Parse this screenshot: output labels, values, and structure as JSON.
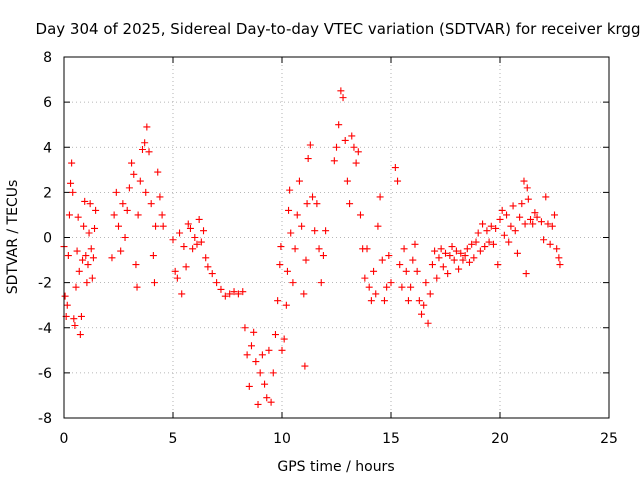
{
  "chart_data": {
    "type": "scatter",
    "title": "Day 304 of 2025, Sidereal Day-to-day VTEC variation (SDTVAR) for receiver krgg",
    "xlabel": "GPS time / hours",
    "ylabel": "SDTVAR / TECUs",
    "xlim": [
      0,
      25
    ],
    "ylim": [
      -8,
      8
    ],
    "xticks": [
      0,
      5,
      10,
      15,
      20,
      25
    ],
    "yticks": [
      -8,
      -6,
      -4,
      -2,
      0,
      2,
      4,
      6,
      8
    ],
    "xtick_labels": [
      "0",
      "5",
      "10",
      "15",
      "20",
      "25"
    ],
    "ytick_labels": [
      "-8",
      "-6",
      "-4",
      "-2",
      "0",
      "2",
      "4",
      "6",
      "8"
    ],
    "grid": true,
    "marker": "+",
    "series": [
      {
        "name": "SDTVAR",
        "color": "#ff0000",
        "points": [
          [
            0.0,
            -0.4
          ],
          [
            0.05,
            -2.6
          ],
          [
            0.1,
            -3.5
          ],
          [
            0.15,
            -3.0
          ],
          [
            0.2,
            -0.8
          ],
          [
            0.25,
            1.0
          ],
          [
            0.3,
            2.4
          ],
          [
            0.35,
            3.3
          ],
          [
            0.4,
            2.0
          ],
          [
            0.45,
            -3.6
          ],
          [
            0.5,
            -3.9
          ],
          [
            0.55,
            -2.2
          ],
          [
            0.6,
            -0.6
          ],
          [
            0.65,
            0.9
          ],
          [
            0.7,
            -1.5
          ],
          [
            0.75,
            -4.3
          ],
          [
            0.8,
            -3.5
          ],
          [
            0.85,
            -1.0
          ],
          [
            0.9,
            0.5
          ],
          [
            0.95,
            1.6
          ],
          [
            1.0,
            -0.8
          ],
          [
            1.05,
            -2.0
          ],
          [
            1.1,
            -1.2
          ],
          [
            1.15,
            0.2
          ],
          [
            1.2,
            1.5
          ],
          [
            1.25,
            -0.5
          ],
          [
            1.3,
            -1.8
          ],
          [
            1.35,
            -0.9
          ],
          [
            1.4,
            0.4
          ],
          [
            1.45,
            1.2
          ],
          [
            2.2,
            -0.9
          ],
          [
            2.3,
            1.0
          ],
          [
            2.4,
            2.0
          ],
          [
            2.5,
            0.5
          ],
          [
            2.6,
            -0.6
          ],
          [
            2.7,
            1.5
          ],
          [
            2.8,
            0.0
          ],
          [
            2.9,
            1.2
          ],
          [
            3.0,
            2.2
          ],
          [
            3.1,
            3.3
          ],
          [
            3.2,
            2.8
          ],
          [
            3.3,
            -1.2
          ],
          [
            3.35,
            -2.2
          ],
          [
            3.4,
            1.0
          ],
          [
            3.5,
            2.5
          ],
          [
            3.6,
            3.9
          ],
          [
            3.7,
            4.2
          ],
          [
            3.75,
            2.0
          ],
          [
            3.8,
            4.9
          ],
          [
            3.9,
            3.8
          ],
          [
            4.0,
            1.5
          ],
          [
            4.1,
            -0.8
          ],
          [
            4.15,
            -2.0
          ],
          [
            4.2,
            0.5
          ],
          [
            4.3,
            2.9
          ],
          [
            4.4,
            1.8
          ],
          [
            4.5,
            1.0
          ],
          [
            4.55,
            0.5
          ],
          [
            5.0,
            -0.1
          ],
          [
            5.1,
            -1.5
          ],
          [
            5.2,
            -1.8
          ],
          [
            5.3,
            0.2
          ],
          [
            5.4,
            -2.5
          ],
          [
            5.5,
            -0.4
          ],
          [
            5.6,
            -1.3
          ],
          [
            5.7,
            0.6
          ],
          [
            5.8,
            0.4
          ],
          [
            5.9,
            -0.5
          ],
          [
            6.0,
            0.0
          ],
          [
            6.1,
            -0.3
          ],
          [
            6.2,
            0.8
          ],
          [
            6.3,
            -0.2
          ],
          [
            6.4,
            0.3
          ],
          [
            6.5,
            -0.9
          ],
          [
            6.6,
            -1.3
          ],
          [
            6.8,
            -1.6
          ],
          [
            7.0,
            -2.0
          ],
          [
            7.2,
            -2.3
          ],
          [
            7.4,
            -2.6
          ],
          [
            7.6,
            -2.5
          ],
          [
            7.8,
            -2.4
          ],
          [
            8.0,
            -2.5
          ],
          [
            8.2,
            -2.4
          ],
          [
            8.3,
            -4.0
          ],
          [
            8.4,
            -5.2
          ],
          [
            8.5,
            -6.6
          ],
          [
            8.6,
            -4.8
          ],
          [
            8.7,
            -4.2
          ],
          [
            8.8,
            -5.5
          ],
          [
            8.9,
            -7.4
          ],
          [
            9.0,
            -6.0
          ],
          [
            9.1,
            -5.2
          ],
          [
            9.2,
            -6.5
          ],
          [
            9.3,
            -7.1
          ],
          [
            9.4,
            -5.0
          ],
          [
            9.5,
            -7.3
          ],
          [
            9.6,
            -6.0
          ],
          [
            9.7,
            -4.3
          ],
          [
            9.8,
            -2.8
          ],
          [
            9.9,
            -1.2
          ],
          [
            9.95,
            -0.4
          ],
          [
            10.0,
            -5.0
          ],
          [
            10.1,
            -4.5
          ],
          [
            10.2,
            -3.0
          ],
          [
            10.25,
            -1.5
          ],
          [
            10.3,
            1.2
          ],
          [
            10.35,
            2.1
          ],
          [
            10.4,
            0.2
          ],
          [
            10.5,
            -2.0
          ],
          [
            10.6,
            -0.5
          ],
          [
            10.7,
            1.0
          ],
          [
            10.8,
            2.5
          ],
          [
            10.9,
            0.5
          ],
          [
            11.0,
            -2.5
          ],
          [
            11.05,
            -5.7
          ],
          [
            11.1,
            -1.0
          ],
          [
            11.15,
            1.5
          ],
          [
            11.2,
            3.5
          ],
          [
            11.3,
            4.1
          ],
          [
            11.4,
            1.8
          ],
          [
            11.5,
            0.3
          ],
          [
            11.6,
            1.5
          ],
          [
            11.7,
            -0.5
          ],
          [
            11.8,
            -2.0
          ],
          [
            11.9,
            -0.8
          ],
          [
            12.0,
            0.3
          ],
          [
            12.4,
            3.4
          ],
          [
            12.5,
            4.0
          ],
          [
            12.6,
            5.0
          ],
          [
            12.7,
            6.5
          ],
          [
            12.8,
            6.2
          ],
          [
            12.9,
            4.3
          ],
          [
            13.0,
            2.5
          ],
          [
            13.1,
            1.5
          ],
          [
            13.2,
            4.5
          ],
          [
            13.3,
            4.0
          ],
          [
            13.4,
            3.3
          ],
          [
            13.5,
            3.8
          ],
          [
            13.6,
            1.0
          ],
          [
            13.7,
            -0.5
          ],
          [
            13.8,
            -1.8
          ],
          [
            13.9,
            -0.5
          ],
          [
            14.0,
            -2.2
          ],
          [
            14.1,
            -2.8
          ],
          [
            14.2,
            -1.5
          ],
          [
            14.3,
            -2.5
          ],
          [
            14.4,
            0.5
          ],
          [
            14.5,
            1.8
          ],
          [
            14.6,
            -1.0
          ],
          [
            14.7,
            -2.8
          ],
          [
            14.8,
            -2.2
          ],
          [
            14.9,
            -0.8
          ],
          [
            15.0,
            -2.0
          ],
          [
            15.2,
            3.1
          ],
          [
            15.3,
            2.5
          ],
          [
            15.4,
            -1.2
          ],
          [
            15.5,
            -2.2
          ],
          [
            15.6,
            -0.5
          ],
          [
            15.7,
            -1.5
          ],
          [
            15.8,
            -2.8
          ],
          [
            15.9,
            -2.2
          ],
          [
            16.0,
            -1.0
          ],
          [
            16.1,
            -0.3
          ],
          [
            16.2,
            -1.5
          ],
          [
            16.3,
            -2.8
          ],
          [
            16.4,
            -3.4
          ],
          [
            16.5,
            -3.0
          ],
          [
            16.6,
            -2.0
          ],
          [
            16.7,
            -3.8
          ],
          [
            16.8,
            -2.5
          ],
          [
            16.9,
            -1.2
          ],
          [
            17.0,
            -0.6
          ],
          [
            17.1,
            -1.8
          ],
          [
            17.2,
            -0.9
          ],
          [
            17.3,
            -0.5
          ],
          [
            17.4,
            -1.3
          ],
          [
            17.5,
            -0.7
          ],
          [
            17.6,
            -1.6
          ],
          [
            17.7,
            -0.8
          ],
          [
            17.8,
            -0.4
          ],
          [
            17.9,
            -1.0
          ],
          [
            18.0,
            -0.6
          ],
          [
            18.1,
            -1.4
          ],
          [
            18.2,
            -0.7
          ],
          [
            18.3,
            -1.0
          ],
          [
            18.4,
            -0.8
          ],
          [
            18.5,
            -0.5
          ],
          [
            18.6,
            -1.1
          ],
          [
            18.7,
            -0.3
          ],
          [
            18.8,
            -0.9
          ],
          [
            18.9,
            -0.2
          ],
          [
            19.0,
            0.2
          ],
          [
            19.1,
            -0.6
          ],
          [
            19.2,
            0.6
          ],
          [
            19.3,
            -0.4
          ],
          [
            19.4,
            0.3
          ],
          [
            19.5,
            -0.2
          ],
          [
            19.6,
            0.5
          ],
          [
            19.7,
            -0.3
          ],
          [
            19.8,
            0.4
          ],
          [
            19.9,
            -1.2
          ],
          [
            20.0,
            0.8
          ],
          [
            20.1,
            1.2
          ],
          [
            20.2,
            0.1
          ],
          [
            20.3,
            1.0
          ],
          [
            20.4,
            -0.2
          ],
          [
            20.5,
            0.5
          ],
          [
            20.6,
            1.4
          ],
          [
            20.7,
            0.3
          ],
          [
            20.8,
            -0.7
          ],
          [
            20.9,
            0.9
          ],
          [
            21.0,
            1.5
          ],
          [
            21.1,
            2.5
          ],
          [
            21.15,
            0.6
          ],
          [
            21.2,
            -1.6
          ],
          [
            21.25,
            2.2
          ],
          [
            21.3,
            1.7
          ],
          [
            21.4,
            0.8
          ],
          [
            21.5,
            0.6
          ],
          [
            21.6,
            1.1
          ],
          [
            21.7,
            0.9
          ],
          [
            21.9,
            0.7
          ],
          [
            22.0,
            -0.1
          ],
          [
            22.1,
            1.8
          ],
          [
            22.2,
            0.6
          ],
          [
            22.3,
            -0.3
          ],
          [
            22.4,
            0.5
          ],
          [
            22.5,
            1.0
          ],
          [
            22.6,
            -0.5
          ],
          [
            22.7,
            -0.9
          ],
          [
            22.75,
            -1.2
          ]
        ]
      }
    ]
  }
}
